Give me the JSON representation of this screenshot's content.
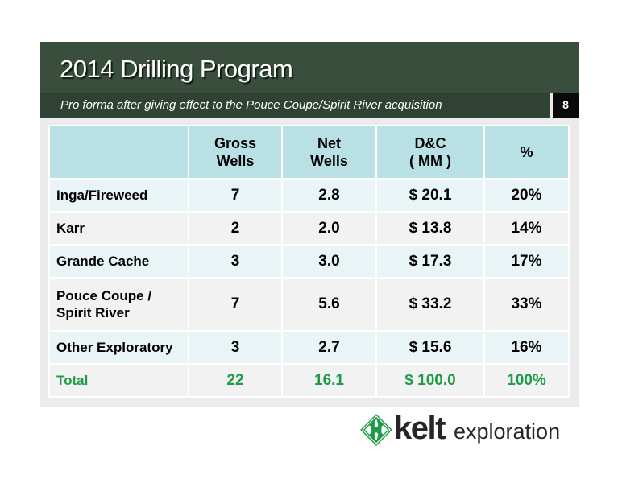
{
  "slide": {
    "title": "2014 Drilling Program",
    "subtitle": "Pro forma after giving effect to the Pouce Coupe/Spirit River acquisition",
    "page_number": "8"
  },
  "table": {
    "headers": [
      {
        "lines": []
      },
      {
        "lines": [
          "Gross",
          "Wells"
        ]
      },
      {
        "lines": [
          "Net",
          "Wells"
        ]
      },
      {
        "lines": [
          "D&C",
          "( MM )"
        ]
      },
      {
        "lines": [
          "%"
        ]
      }
    ],
    "rows": [
      {
        "label_lines": [
          "Inga/Fireweed"
        ],
        "gross_wells": "7",
        "net_wells": "2.8",
        "dc": "$ 20.1",
        "pct": "20%"
      },
      {
        "label_lines": [
          "Karr"
        ],
        "gross_wells": "2",
        "net_wells": "2.0",
        "dc": "$ 13.8",
        "pct": "14%"
      },
      {
        "label_lines": [
          "Grande Cache"
        ],
        "gross_wells": "3",
        "net_wells": "3.0",
        "dc": "$ 17.3",
        "pct": "17%"
      },
      {
        "label_lines": [
          "Pouce Coupe /",
          "Spirit River"
        ],
        "gross_wells": "7",
        "net_wells": "5.6",
        "dc": "$ 33.2",
        "pct": "33%"
      },
      {
        "label_lines": [
          "Other Exploratory"
        ],
        "gross_wells": "3",
        "net_wells": "2.7",
        "dc": "$ 15.6",
        "pct": "16%"
      }
    ],
    "total": {
      "label": "Total",
      "gross_wells": "22",
      "net_wells": "16.1",
      "dc": "$ 100.0",
      "pct": "100%"
    }
  },
  "logo": {
    "brand": "kelt",
    "tagline": "exploration",
    "mark_icon": "celtic-knot-icon"
  },
  "colors": {
    "header_bg": "#3a4e3d",
    "table_header_bg": "#b9e0e5",
    "total_text": "#1f9a48",
    "logo_green": "#1f9a48"
  }
}
